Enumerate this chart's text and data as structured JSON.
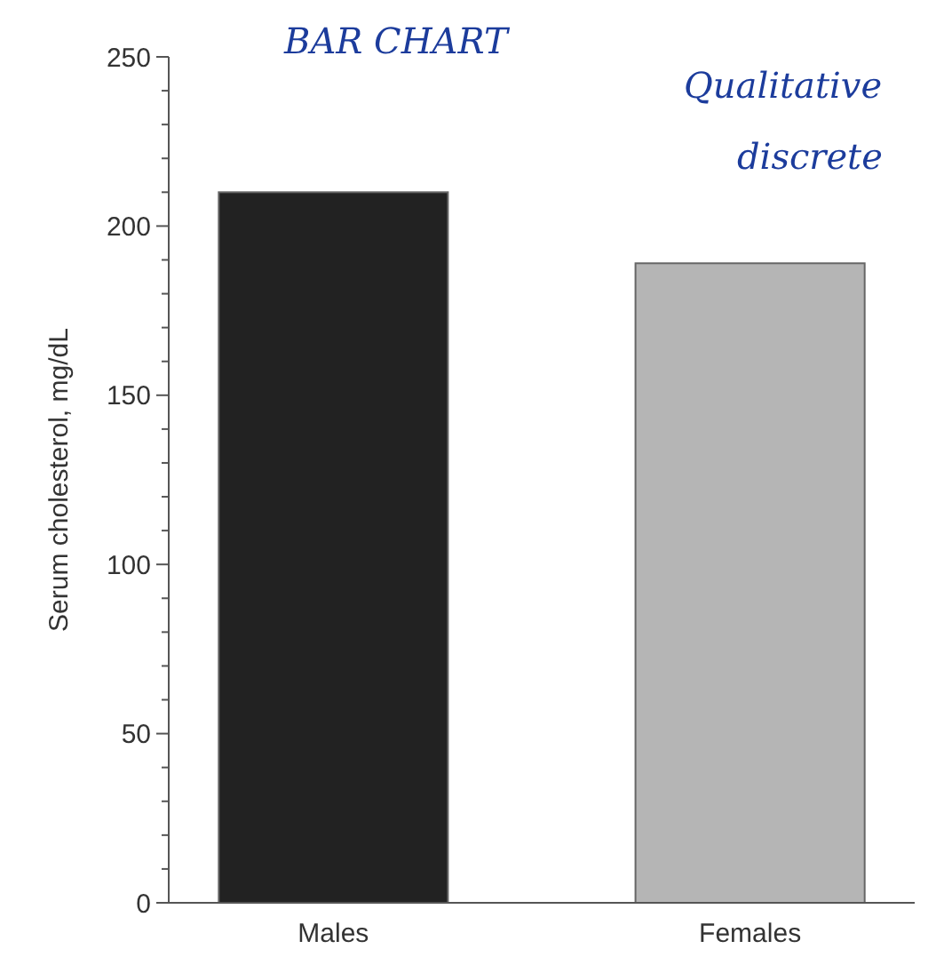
{
  "chart_data": {
    "type": "bar",
    "ylabel": "Serum cholesterol, mg/dL",
    "categories": [
      "Males",
      "Females"
    ],
    "values": [
      210,
      189
    ],
    "colors": [
      "#222222",
      "#b5b5b5"
    ],
    "ylim": [
      0,
      250
    ],
    "yticks": [
      0,
      {
        "value": 10,
        "label": null
      },
      {
        "value": 20,
        "label": null
      },
      {
        "value": 30,
        "label": null
      },
      {
        "value": 40,
        "label": null
      },
      50,
      {
        "value": 60,
        "label": null
      },
      {
        "value": 70,
        "label": null
      },
      {
        "value": 80,
        "label": null
      },
      {
        "value": 90,
        "label": null
      },
      100,
      {
        "value": 110,
        "label": null
      },
      {
        "value": 120,
        "label": null
      },
      {
        "value": 130,
        "label": null
      },
      {
        "value": 140,
        "label": null
      },
      150,
      {
        "value": 160,
        "label": null
      },
      {
        "value": 170,
        "label": null
      },
      {
        "value": 180,
        "label": null
      },
      {
        "value": 190,
        "label": null
      },
      200,
      {
        "value": 210,
        "label": null
      },
      {
        "value": 220,
        "label": null
      },
      {
        "value": 230,
        "label": null
      },
      {
        "value": 240,
        "label": null
      },
      250
    ],
    "annotations": [
      "BAR CHART",
      "Qualitative",
      "discrete"
    ]
  }
}
